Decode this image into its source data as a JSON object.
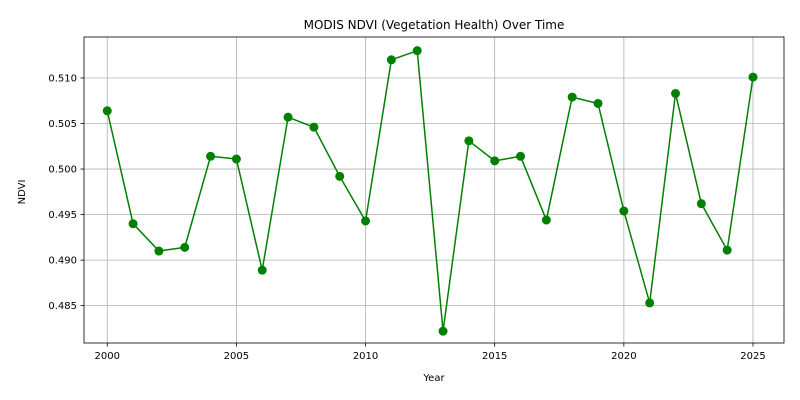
{
  "chart_data": {
    "type": "line",
    "title": "MODIS NDVI (Vegetation Health) Over Time",
    "xlabel": "Year",
    "ylabel": "NDVI",
    "xlim": [
      1999.1,
      2026.2
    ],
    "ylim": [
      0.4809,
      0.5145
    ],
    "xticks": [
      2000,
      2005,
      2010,
      2015,
      2020,
      2025
    ],
    "xtick_labels": [
      "2000",
      "2005",
      "2010",
      "2015",
      "2020",
      "2025"
    ],
    "yticks": [
      0.485,
      0.49,
      0.495,
      0.5,
      0.505,
      0.51
    ],
    "ytick_labels": [
      "0.485",
      "0.490",
      "0.495",
      "0.500",
      "0.505",
      "0.510"
    ],
    "grid": true,
    "series": [
      {
        "color": "#008000",
        "marker": "circle",
        "x": [
          2000,
          2001,
          2002,
          2003,
          2004,
          2005,
          2006,
          2007,
          2008,
          2009,
          2010,
          2011,
          2012,
          2013,
          2014,
          2015,
          2016,
          2017,
          2018,
          2019,
          2020,
          2021,
          2022,
          2023,
          2024,
          2025
        ],
        "y": [
          0.5064,
          0.494,
          0.491,
          0.4914,
          0.5014,
          0.5011,
          0.4889,
          0.5057,
          0.5046,
          0.4992,
          0.4943,
          0.512,
          0.513,
          0.4822,
          0.5031,
          0.5009,
          0.5014,
          0.4944,
          0.5079,
          0.5072,
          0.4954,
          0.4853,
          0.5083,
          0.4962,
          0.4911,
          0.5101
        ]
      }
    ]
  }
}
